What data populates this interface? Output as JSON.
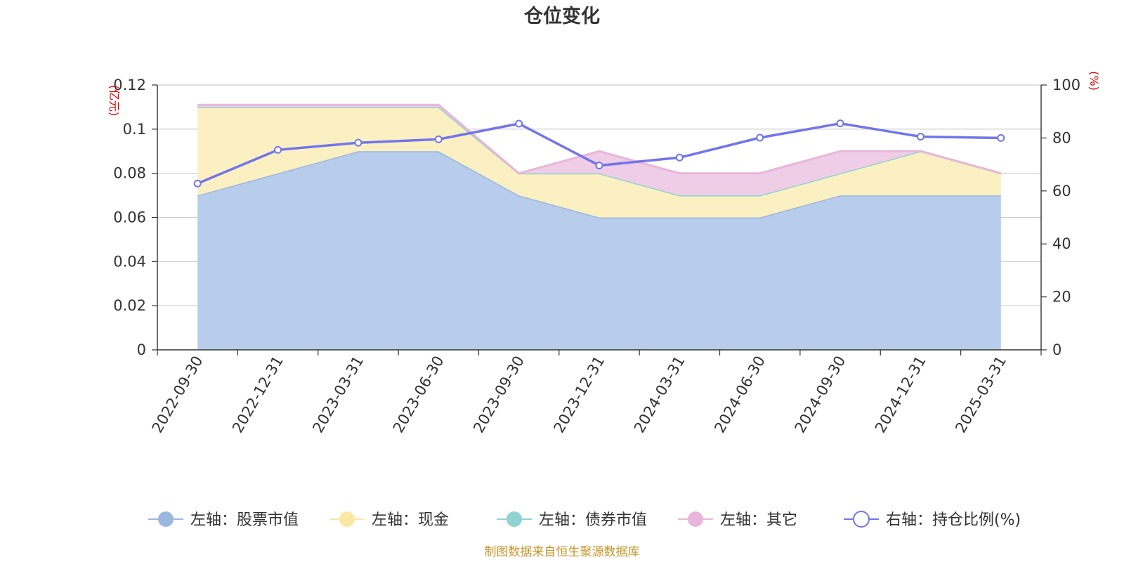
{
  "chart_data": {
    "type": "area",
    "title": "仓位变化",
    "categories": [
      "2022-09-30",
      "2022-12-31",
      "2023-03-31",
      "2023-06-30",
      "2023-09-30",
      "2023-12-31",
      "2024-03-31",
      "2024-06-30",
      "2024-09-30",
      "2024-12-31",
      "2025-03-31"
    ],
    "left_axis": {
      "unit": "(亿元)",
      "ylim": [
        0,
        0.12
      ],
      "ticks": [
        "0",
        "0.02",
        "0.04",
        "0.06",
        "0.08",
        "0.1",
        "0.12"
      ]
    },
    "right_axis": {
      "unit": "(%)",
      "ylim": [
        0,
        100
      ],
      "ticks": [
        "0",
        "20",
        "40",
        "60",
        "80",
        "100"
      ]
    },
    "stacked_series": [
      {
        "name": "左轴：股票市值",
        "color": "#9bb7e0",
        "fill": "#b8cceb",
        "values": [
          0.07,
          0.08,
          0.09,
          0.09,
          0.07,
          0.06,
          0.06,
          0.06,
          0.07,
          0.07,
          0.07
        ]
      },
      {
        "name": "左轴：现金",
        "color": "#f9e7a4",
        "fill": "#fbf0c2",
        "values": [
          0.04,
          0.03,
          0.02,
          0.02,
          0.01,
          0.02,
          0.01,
          0.01,
          0.01,
          0.02,
          0.01
        ]
      },
      {
        "name": "左轴：债券市值",
        "color": "#8fd3d3",
        "fill": "#b4e2e2",
        "values": [
          0,
          0,
          0,
          0,
          0,
          0,
          0,
          0,
          0,
          0,
          0
        ]
      },
      {
        "name": "左轴：其它",
        "color": "#e8b6da",
        "fill": "#f0cde6",
        "values": [
          0.001,
          0.001,
          0.001,
          0.001,
          0,
          0.01,
          0.01,
          0.01,
          0.01,
          0,
          0
        ]
      }
    ],
    "line_series": {
      "name": "右轴：持仓比例(%)",
      "color": "#7275eb",
      "values": [
        62.8,
        75.5,
        78.2,
        79.5,
        85.4,
        69.6,
        72.6,
        80.1,
        85.5,
        80.5,
        80.0
      ]
    },
    "source": "制图数据来自恒生聚源数据库"
  }
}
